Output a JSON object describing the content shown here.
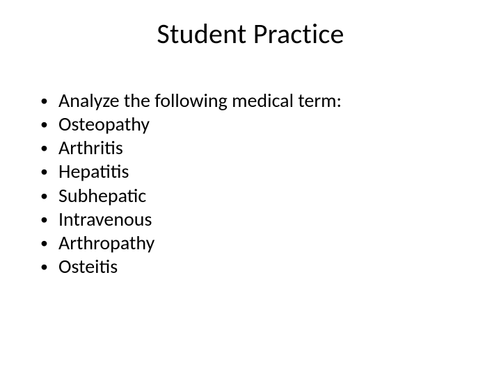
{
  "slide": {
    "title": "Student Practice",
    "bullets": [
      "Analyze the following medical term:",
      "Osteopathy",
      "Arthritis",
      "Hepatitis",
      "Subhepatic",
      "Intravenous",
      "Arthropathy",
      "Osteitis"
    ],
    "background_color": "#ffffff",
    "text_color": "#000000",
    "title_fontsize": 40,
    "body_fontsize": 28
  }
}
